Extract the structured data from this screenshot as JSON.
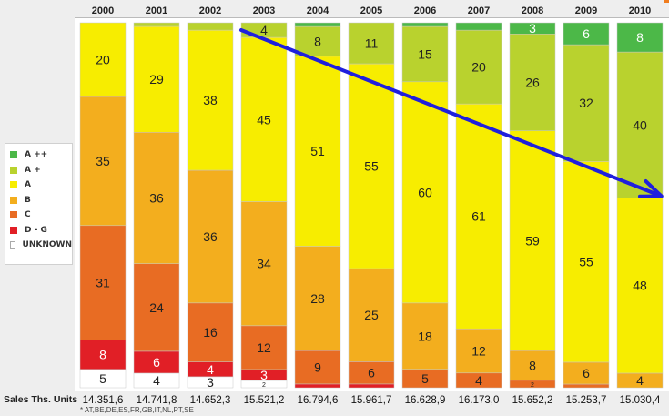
{
  "chart_data": {
    "type": "bar",
    "stacked": true,
    "categories": [
      "2000",
      "2001",
      "2002",
      "2003",
      "2004",
      "2005",
      "2006",
      "2007",
      "2008",
      "2009",
      "2010"
    ],
    "series": [
      {
        "name": "A ++",
        "color": "#4cb848",
        "values": [
          0,
          0,
          0,
          0,
          1,
          0,
          1,
          2,
          3,
          6,
          8
        ],
        "labels": [
          "",
          "",
          "",
          "",
          "",
          "",
          "",
          "",
          "3",
          "6",
          "8"
        ]
      },
      {
        "name": "A +",
        "color": "#b9d22e",
        "values": [
          0,
          1,
          2,
          4,
          8,
          11,
          15,
          20,
          26,
          32,
          40
        ],
        "labels": [
          "",
          "",
          "",
          "4",
          "8",
          "11",
          "15",
          "20",
          "26",
          "32",
          "40"
        ]
      },
      {
        "name": "A",
        "color": "#f7ed00",
        "values": [
          20,
          29,
          38,
          45,
          51,
          55,
          60,
          61,
          59,
          55,
          48
        ],
        "labels": [
          "20",
          "29",
          "38",
          "45",
          "51",
          "55",
          "60",
          "61",
          "59",
          "55",
          "48"
        ]
      },
      {
        "name": "B",
        "color": "#f3ae1e",
        "values": [
          35,
          36,
          36,
          34,
          28,
          25,
          18,
          12,
          8,
          6,
          4
        ],
        "labels": [
          "35",
          "36",
          "36",
          "34",
          "28",
          "25",
          "18",
          "12",
          "8",
          "6",
          "4"
        ]
      },
      {
        "name": "C",
        "color": "#e86c23",
        "values": [
          31,
          24,
          16,
          12,
          9,
          6,
          5,
          4,
          2,
          1,
          0
        ],
        "labels": [
          "31",
          "24",
          "16",
          "12",
          "9",
          "6",
          "5",
          "4",
          "2",
          "",
          ""
        ]
      },
      {
        "name": "D - G",
        "color": "#e11f26",
        "values": [
          8,
          6,
          4,
          3,
          1,
          1,
          0,
          0,
          0,
          0,
          0
        ],
        "labels": [
          "8",
          "6",
          "4",
          "3",
          "",
          "",
          "",
          "",
          "",
          "",
          ""
        ]
      },
      {
        "name": "UNKNOWN",
        "color": "#ffffff",
        "values": [
          5,
          4,
          3,
          2,
          0,
          0,
          0,
          0,
          0,
          0,
          0
        ],
        "labels": [
          "5",
          "4",
          "3",
          "2",
          "",
          "",
          "",
          "",
          "",
          "",
          ""
        ]
      }
    ],
    "sales_label": "Sales Ths. Units",
    "sales": [
      "14.351,6",
      "14.741,8",
      "14.652,3",
      "15.521,2",
      "16.794,6",
      "15.961,7",
      "16.628,9",
      "16.173,0",
      "15.652,2",
      "15.253,7",
      "15.030,4"
    ],
    "footnote": "* AT,BE,DE,ES,FR,GB,IT,NL,PT,SE",
    "trend_arrow": {
      "from_year": "2003",
      "to_year": "2010",
      "color": "#1f1fdd"
    },
    "legend_position": "left"
  }
}
